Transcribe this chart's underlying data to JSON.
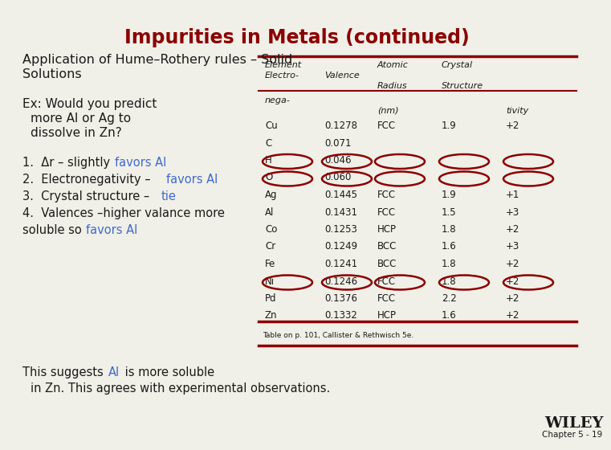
{
  "title": "Impurities in Metals (continued)",
  "title_color": "#8B0000",
  "bg_color": "#f0f0e8",
  "dark_red": "#8B0000",
  "table_data": [
    [
      "Cu",
      "0.1278",
      "FCC",
      "1.9",
      "+2"
    ],
    [
      "C",
      "0.071",
      "",
      "",
      ""
    ],
    [
      "H",
      "0.046",
      "",
      "",
      ""
    ],
    [
      "O",
      "0.060",
      "",
      "",
      ""
    ],
    [
      "Ag",
      "0.1445",
      "FCC",
      "1.9",
      "+1"
    ],
    [
      "Al",
      "0.1431",
      "FCC",
      "1.5",
      "+3"
    ],
    [
      "Co",
      "0.1253",
      "HCP",
      "1.8",
      "+2"
    ],
    [
      "Cr",
      "0.1249",
      "BCC",
      "1.6",
      "+3"
    ],
    [
      "Fe",
      "0.1241",
      "BCC",
      "1.8",
      "+2"
    ],
    [
      "Ni",
      "0.1246",
      "FCC",
      "1.8",
      "+2"
    ],
    [
      "Pd",
      "0.1376",
      "FCC",
      "2.2",
      "+2"
    ],
    [
      "Zn",
      "0.1332",
      "HCP",
      "1.6",
      "+2"
    ]
  ],
  "circle_rows": [
    2,
    3,
    9
  ],
  "footer_text": "Table on p. 101, Callister & Rethwisch 5e.",
  "wiley_text": "WILEY",
  "chapter_text": "Chapter 5 - 19"
}
